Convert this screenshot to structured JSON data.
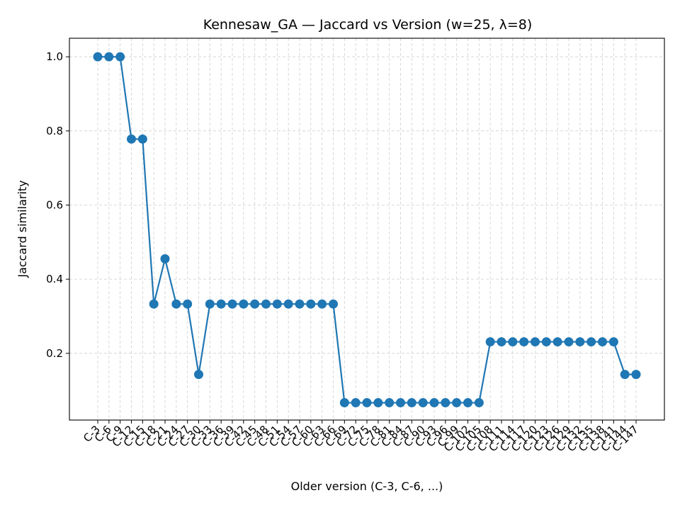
{
  "chart_data": {
    "type": "line",
    "title": "Kennesaw_GA — Jaccard vs Version (w=25, λ=8)",
    "xlabel": "Older version (C-3, C-6, ...)",
    "ylabel": "Jaccard similarity",
    "ylim": [
      0.02,
      1.05
    ],
    "yticks": [
      0.2,
      0.4,
      0.6,
      0.8,
      1.0
    ],
    "grid": true,
    "color": "#1f77b4",
    "categories": [
      "C-3",
      "C-6",
      "C-9",
      "C-12",
      "C-15",
      "C-18",
      "C-21",
      "C-24",
      "C-27",
      "C-30",
      "C-33",
      "C-36",
      "C-39",
      "C-42",
      "C-45",
      "C-48",
      "C-51",
      "C-54",
      "C-57",
      "C-60",
      "C-63",
      "C-66",
      "C-69",
      "C-72",
      "C-75",
      "C-78",
      "C-81",
      "C-84",
      "C-87",
      "C-90",
      "C-93",
      "C-96",
      "C-99",
      "C-102",
      "C-105",
      "C-108",
      "C-111",
      "C-114",
      "C-117",
      "C-120",
      "C-123",
      "C-126",
      "C-129",
      "C-132",
      "C-135",
      "C-138",
      "C-141",
      "C-144",
      "C-147"
    ],
    "values": [
      1.0,
      1.0,
      1.0,
      0.778,
      0.778,
      0.333,
      0.455,
      0.333,
      0.333,
      0.143,
      0.333,
      0.333,
      0.333,
      0.333,
      0.333,
      0.333,
      0.333,
      0.333,
      0.333,
      0.333,
      0.333,
      0.333,
      0.0667,
      0.0667,
      0.0667,
      0.0667,
      0.0667,
      0.0667,
      0.0667,
      0.0667,
      0.0667,
      0.0667,
      0.0667,
      0.0667,
      0.0667,
      0.231,
      0.231,
      0.231,
      0.231,
      0.231,
      0.231,
      0.231,
      0.231,
      0.231,
      0.231,
      0.231,
      0.231,
      0.143,
      0.143
    ]
  }
}
